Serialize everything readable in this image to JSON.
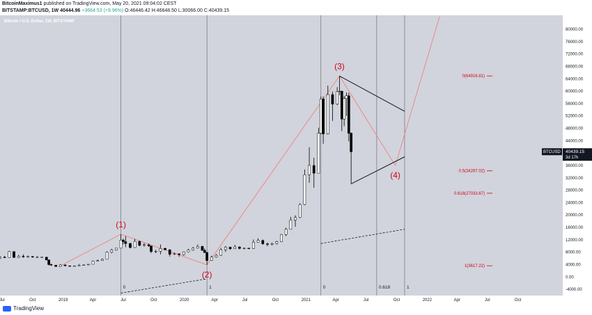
{
  "header": {
    "line1_author": "BitcoinMaximus1",
    "line1_rest": " published on TradingView.com, May 20, 2021 09:04:02 CEST",
    "symbol": "BITSTAMP:BTCUSD, 1W",
    "last": "40444.96",
    "change": "+3664.53 (+9.96%)",
    "ohlc": "O:46446.42 H:46648.50 L:30066.00 C:40439.15"
  },
  "symbol_line": "Bitcoin / U.S. Dollar, 1W, BITSTAMP",
  "price_badge": {
    "ticker": "BTCUSD",
    "price": "40439.15",
    "countdown": "3d 17h"
  },
  "footer": {
    "logo_text": "TradingView"
  },
  "colors": {
    "bg": "#d1d4dc",
    "up": "#ffffff",
    "down": "#000000",
    "wave": "#f08080",
    "label": "#d0021b",
    "fib": "#d0021b",
    "vline": "#6d7079"
  },
  "chart_data": {
    "type": "candlestick",
    "y_ticks": [
      80000,
      76000,
      72000,
      68000,
      64000,
      60000,
      56000,
      52000,
      48000,
      44000,
      40000,
      36000,
      32000,
      28000,
      24000,
      20000,
      16000,
      12000,
      8000,
      4000,
      0,
      -4000
    ],
    "y_tick_labels": [
      "80000.00",
      "76000.00",
      "72000.00",
      "68000.00",
      "64000.00",
      "60000.00",
      "56000.00",
      "52000.00",
      "48000.00",
      "44000.00",
      "",
      "36000.00",
      "32000.00",
      "28000.00",
      "24000.00",
      "20000.00",
      "16000.00",
      "12000.00",
      "8000.00",
      "4000.00",
      "0.00",
      "-4000.00"
    ],
    "ylim": [
      -6000,
      84500
    ],
    "x_range": [
      "2018-06-25",
      "2023-02-13"
    ],
    "x_ticks": [
      {
        "date": "2018-07-01",
        "label": "Jul"
      },
      {
        "date": "2018-10-01",
        "label": "Oct"
      },
      {
        "date": "2019-01-01",
        "label": "2019"
      },
      {
        "date": "2019-04-01",
        "label": "Apr"
      },
      {
        "date": "2019-07-01",
        "label": "Jul"
      },
      {
        "date": "2019-10-01",
        "label": "Oct"
      },
      {
        "date": "2020-01-01",
        "label": "2020"
      },
      {
        "date": "2020-04-01",
        "label": "Apr"
      },
      {
        "date": "2020-07-01",
        "label": "Jul"
      },
      {
        "date": "2020-10-01",
        "label": "Oct"
      },
      {
        "date": "2021-01-01",
        "label": "2021"
      },
      {
        "date": "2021-04-01",
        "label": "Apr"
      },
      {
        "date": "2021-07-01",
        "label": "Jul"
      },
      {
        "date": "2021-10-01",
        "label": "Oct"
      },
      {
        "date": "2022-01-01",
        "label": "2022"
      },
      {
        "date": "2022-04-01",
        "label": "Apr"
      },
      {
        "date": "2022-07-01",
        "label": "Jul"
      },
      {
        "date": "2022-10-01",
        "label": "Oct"
      }
    ],
    "ohlc": [
      [
        "2018-06-25",
        6100,
        6700,
        5800,
        6400
      ],
      [
        "2018-07-09",
        6400,
        6800,
        6100,
        6300
      ],
      [
        "2018-07-23",
        6300,
        8400,
        6200,
        8200
      ],
      [
        "2018-08-06",
        8200,
        8300,
        6100,
        6300
      ],
      [
        "2018-08-20",
        6300,
        7100,
        6200,
        6700
      ],
      [
        "2018-09-03",
        6700,
        7300,
        6200,
        6500
      ],
      [
        "2018-09-17",
        6500,
        6900,
        6200,
        6600
      ],
      [
        "2018-10-01",
        6600,
        6800,
        6200,
        6400
      ],
      [
        "2018-10-15",
        6400,
        6700,
        6300,
        6400
      ],
      [
        "2018-10-29",
        6400,
        6500,
        6300,
        6400
      ],
      [
        "2018-11-12",
        6400,
        6500,
        5300,
        5500
      ],
      [
        "2018-11-19",
        5500,
        5600,
        3700,
        4000
      ],
      [
        "2018-11-26",
        4000,
        4300,
        3600,
        3800
      ],
      [
        "2018-12-10",
        3800,
        3900,
        3200,
        3400
      ],
      [
        "2018-12-24",
        3400,
        4200,
        3300,
        3900
      ],
      [
        "2019-01-07",
        3900,
        4000,
        3500,
        3600
      ],
      [
        "2019-01-21",
        3600,
        3700,
        3400,
        3500
      ],
      [
        "2019-02-04",
        3500,
        3700,
        3400,
        3600
      ],
      [
        "2019-02-18",
        3600,
        4200,
        3600,
        3800
      ],
      [
        "2019-03-04",
        3800,
        4000,
        3800,
        3900
      ],
      [
        "2019-03-18",
        3900,
        4100,
        3800,
        4100
      ],
      [
        "2019-04-01",
        4100,
        5300,
        4100,
        5100
      ],
      [
        "2019-04-15",
        5100,
        5600,
        5000,
        5300
      ],
      [
        "2019-04-29",
        5300,
        6000,
        5200,
        5700
      ],
      [
        "2019-05-13",
        5700,
        8300,
        5700,
        8000
      ],
      [
        "2019-05-27",
        8000,
        9100,
        7600,
        8700
      ],
      [
        "2019-06-10",
        8700,
        9300,
        8500,
        9300
      ],
      [
        "2019-06-24",
        9300,
        13800,
        9300,
        11900
      ],
      [
        "2019-07-01",
        11900,
        12400,
        10500,
        11400
      ],
      [
        "2019-07-08",
        11400,
        13200,
        9600,
        10800
      ],
      [
        "2019-07-22",
        10800,
        11100,
        9200,
        9500
      ],
      [
        "2019-08-05",
        9500,
        12300,
        9400,
        11500
      ],
      [
        "2019-08-19",
        11500,
        11700,
        9900,
        10200
      ],
      [
        "2019-09-02",
        10200,
        10900,
        9800,
        10400
      ],
      [
        "2019-09-16",
        10400,
        10800,
        9700,
        10000
      ],
      [
        "2019-09-23",
        10000,
        10100,
        7700,
        8200
      ],
      [
        "2019-10-07",
        8200,
        8800,
        7700,
        8300
      ],
      [
        "2019-10-21",
        8300,
        10500,
        7300,
        9200
      ],
      [
        "2019-11-04",
        9200,
        9500,
        8600,
        8800
      ],
      [
        "2019-11-18",
        8800,
        8900,
        6600,
        7300
      ],
      [
        "2019-12-02",
        7300,
        7900,
        7100,
        7500
      ],
      [
        "2019-12-16",
        7500,
        7600,
        6500,
        7200
      ],
      [
        "2019-12-30",
        7200,
        8200,
        6900,
        8100
      ],
      [
        "2020-01-13",
        8100,
        9100,
        8000,
        8700
      ],
      [
        "2020-01-27",
        8700,
        9700,
        8500,
        9300
      ],
      [
        "2020-02-10",
        9300,
        10500,
        9200,
        9900
      ],
      [
        "2020-02-24",
        9900,
        10000,
        8400,
        8600
      ],
      [
        "2020-03-02",
        8600,
        9200,
        7700,
        7900
      ],
      [
        "2020-03-09",
        7900,
        8100,
        3900,
        5300
      ],
      [
        "2020-03-23",
        5300,
        6900,
        5200,
        6400
      ],
      [
        "2020-04-06",
        6400,
        7400,
        6200,
        7000
      ],
      [
        "2020-04-20",
        7000,
        9400,
        6800,
        8800
      ],
      [
        "2020-05-04",
        8800,
        10000,
        8100,
        9600
      ],
      [
        "2020-05-18",
        9600,
        9800,
        8700,
        9100
      ],
      [
        "2020-06-01",
        9100,
        10400,
        9000,
        9700
      ],
      [
        "2020-06-15",
        9700,
        9900,
        8900,
        9200
      ],
      [
        "2020-06-29",
        9200,
        9500,
        8900,
        9300
      ],
      [
        "2020-07-13",
        9300,
        9400,
        9000,
        9200
      ],
      [
        "2020-07-27",
        9200,
        12100,
        9100,
        11200
      ],
      [
        "2020-08-10",
        11200,
        12500,
        11100,
        11800
      ],
      [
        "2020-08-24",
        11800,
        12100,
        10400,
        10700
      ],
      [
        "2020-09-07",
        10700,
        11100,
        9900,
        10500
      ],
      [
        "2020-09-21",
        10500,
        11100,
        10200,
        10800
      ],
      [
        "2020-10-05",
        10800,
        11700,
        10500,
        11400
      ],
      [
        "2020-10-19",
        11400,
        13900,
        11300,
        13700
      ],
      [
        "2020-11-02",
        13700,
        15900,
        13200,
        15400
      ],
      [
        "2020-11-16",
        15400,
        19400,
        15300,
        18400
      ],
      [
        "2020-11-30",
        18400,
        19900,
        16200,
        19200
      ],
      [
        "2020-12-14",
        19200,
        23800,
        19000,
        23400
      ],
      [
        "2020-12-28",
        23400,
        34700,
        23200,
        33000
      ],
      [
        "2021-01-11",
        33000,
        41900,
        30400,
        36000
      ],
      [
        "2021-01-25",
        36000,
        38500,
        28800,
        33500
      ],
      [
        "2021-02-08",
        33500,
        48200,
        33400,
        46400
      ],
      [
        "2021-02-15",
        46400,
        58300,
        46000,
        57500
      ],
      [
        "2021-02-22",
        57500,
        58300,
        43000,
        46200
      ],
      [
        "2021-03-08",
        46200,
        61800,
        46000,
        58900
      ],
      [
        "2021-03-22",
        58900,
        59900,
        50400,
        55800
      ],
      [
        "2021-04-05",
        55800,
        61300,
        55500,
        59900
      ],
      [
        "2021-04-12",
        59900,
        64900,
        58700,
        60000
      ],
      [
        "2021-04-19",
        60000,
        60100,
        47100,
        51000
      ],
      [
        "2021-04-26",
        51000,
        58400,
        48700,
        57600
      ],
      [
        "2021-05-03",
        57600,
        59600,
        52000,
        58500
      ],
      [
        "2021-05-10",
        58500,
        59500,
        43800,
        46400
      ],
      [
        "2021-05-17",
        46446.42,
        46648.5,
        30066,
        40439.15
      ]
    ],
    "annotations": {
      "waves": [
        {
          "label": "(1)",
          "date": "2019-06-24",
          "price": 13800
        },
        {
          "label": "(2)",
          "date": "2020-03-09",
          "price": 3900
        },
        {
          "label": "(3)",
          "date": "2021-04-12",
          "price": 64900
        },
        {
          "label": "(4)",
          "date": "2021-09-27",
          "price": 36000
        }
      ],
      "projection_end": {
        "date": "2022-02-07",
        "price": 84000
      },
      "wave1_start": {
        "date": "2018-12-17",
        "price": 3200
      },
      "triangle": [
        {
          "date": "2021-04-12",
          "price": 64900
        },
        {
          "date": "2021-10-25",
          "price": 53500
        },
        {
          "date": "2021-05-17",
          "price": 30066
        },
        {
          "date": "2021-10-25",
          "price": 38800
        }
      ],
      "dashed_trend": [
        {
          "date": "2019-06-24",
          "price": -5200
        },
        {
          "date": "2020-03-09",
          "price": -600
        }
      ],
      "dashed_trend2": [
        {
          "date": "2021-02-15",
          "price": 10800
        },
        {
          "date": "2021-10-25",
          "price": 15400
        }
      ],
      "fib_levels": [
        {
          "label": "0(64916.81)",
          "price": 64916.81
        },
        {
          "label": "0.5(34267.02)",
          "price": 34267.02
        },
        {
          "label": "0.618(27033.67)",
          "price": 27033.67
        },
        {
          "label": "1(3617.22)",
          "price": 3617.22
        }
      ],
      "time_lines": [
        {
          "date": "2019-06-24",
          "label": "0"
        },
        {
          "date": "2020-03-09",
          "label": "1"
        },
        {
          "date": "2021-02-15",
          "label": "0"
        },
        {
          "date": "2021-08-02",
          "label": "0.618"
        },
        {
          "date": "2021-10-25",
          "label": "1"
        }
      ]
    }
  }
}
